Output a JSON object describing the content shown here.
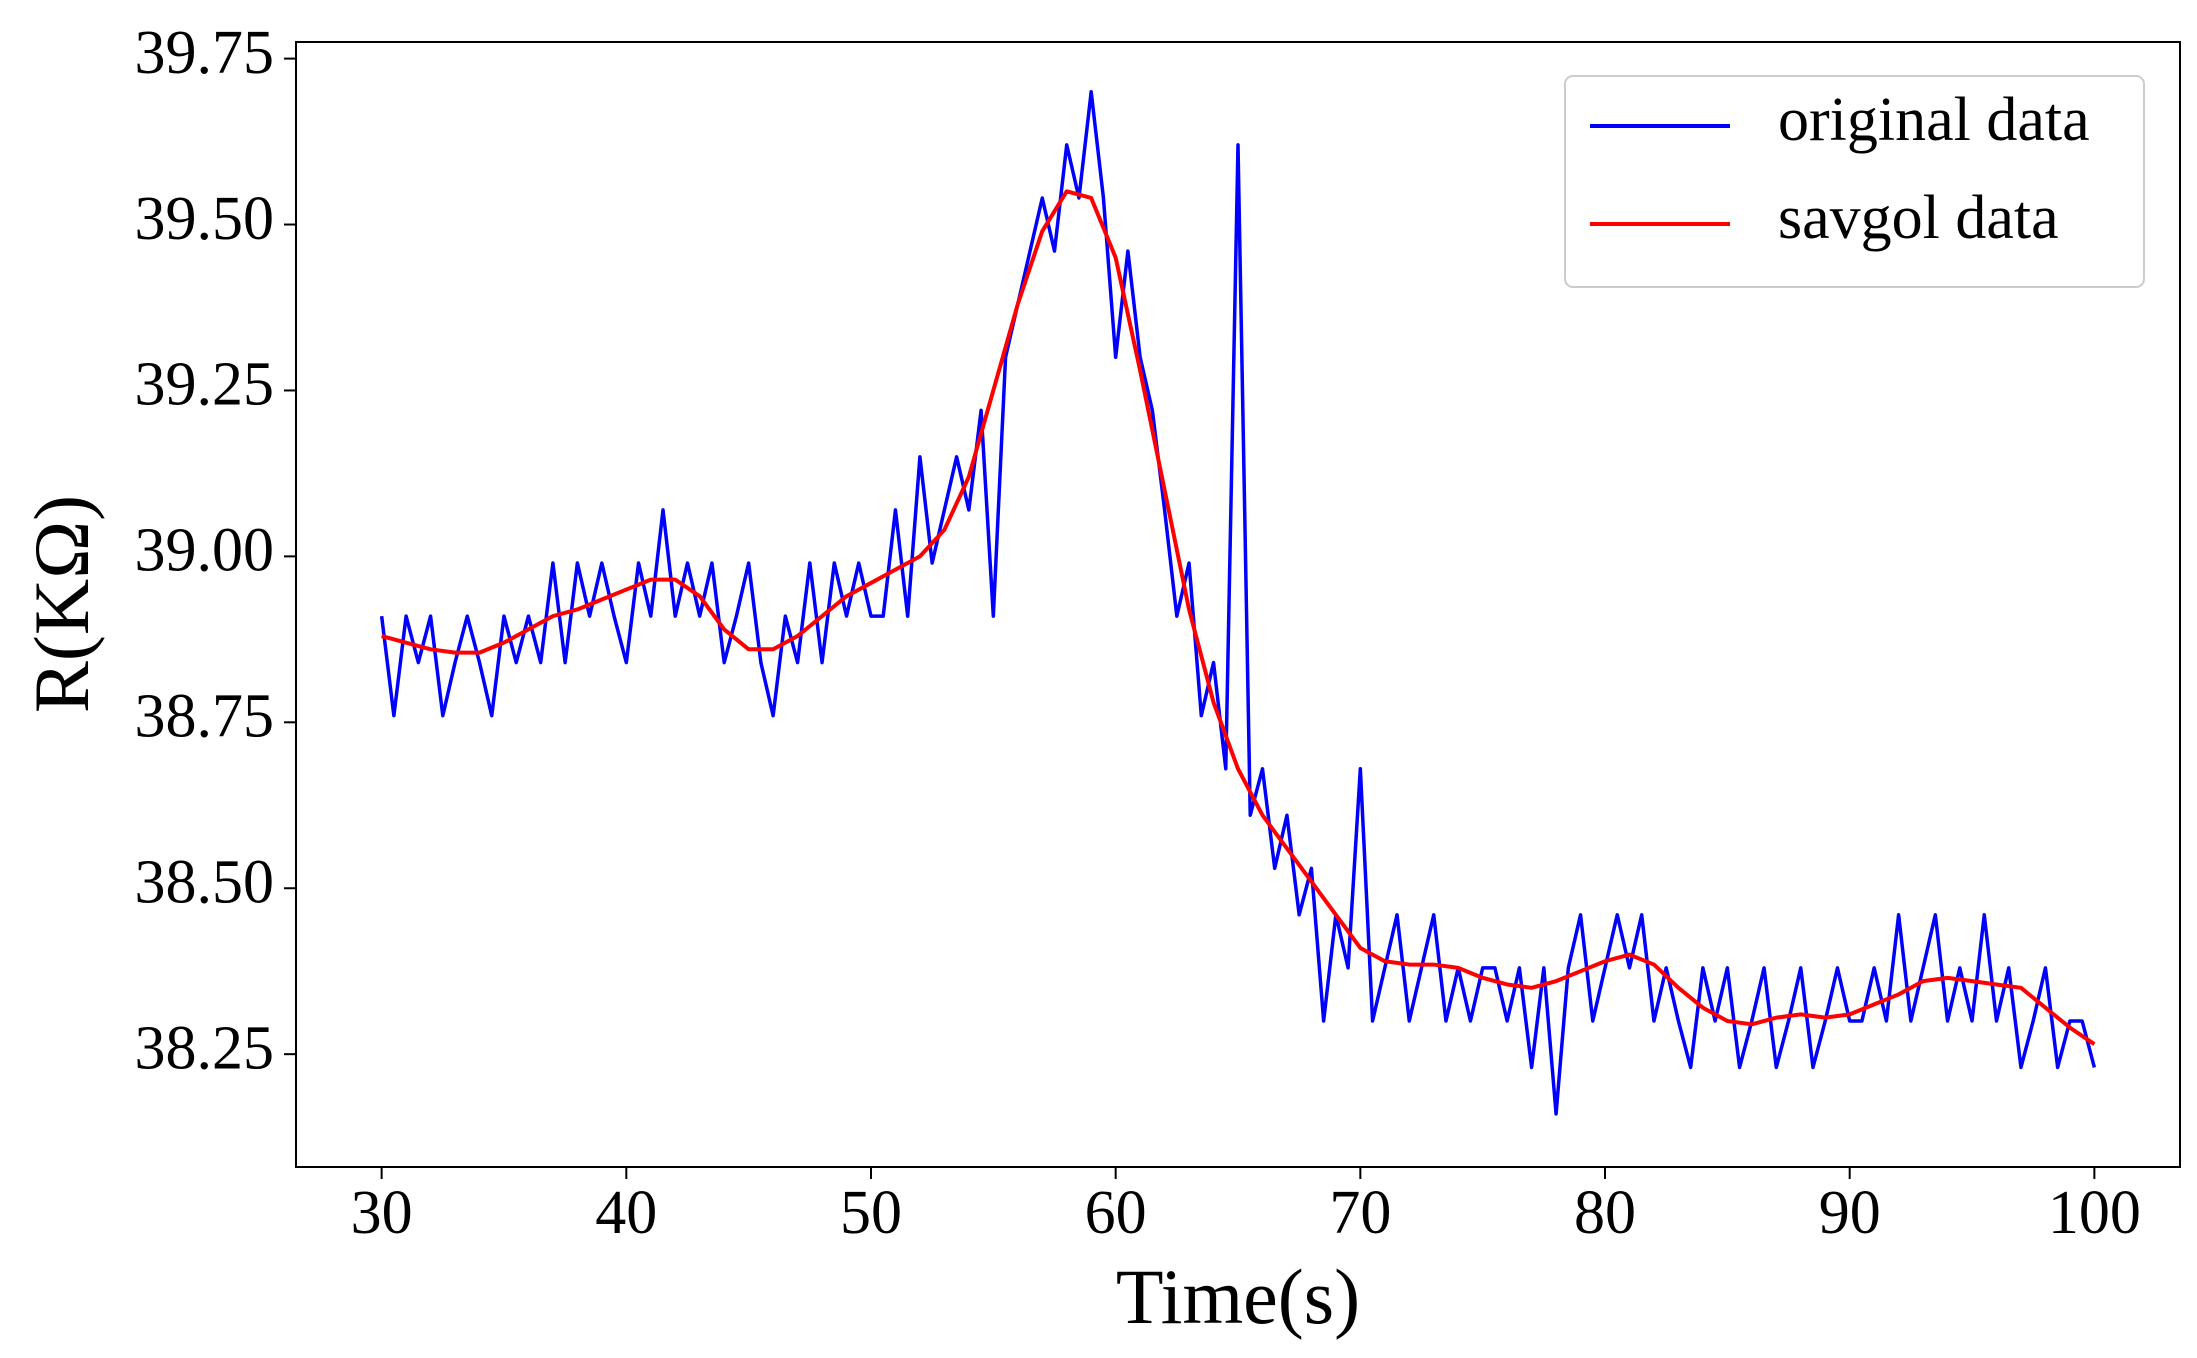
{
  "chart_data": {
    "type": "line",
    "xlabel": "Time(s)",
    "ylabel": "R(KΩ)",
    "xlim": [
      26.5,
      103.5
    ],
    "xticks": [
      30,
      40,
      50,
      60,
      70,
      80,
      90,
      100
    ],
    "ylim": [
      38.08,
      39.775
    ],
    "yticks": [
      38.25,
      {
        "value": 38.5,
        "label": "38.50"
      },
      38.75,
      {
        "value": 39,
        "label": "39.00"
      },
      39.25,
      {
        "value": 39.5,
        "label": "39.50"
      },
      39.75
    ],
    "legend": "upper right",
    "series": [
      {
        "name": "original data",
        "color": "#0000ff",
        "x": [
          30,
          30.5,
          31,
          31.5,
          32,
          32.5,
          33,
          33.5,
          34,
          34.5,
          35,
          35.5,
          36,
          36.5,
          37,
          37.5,
          38,
          38.5,
          39,
          39.5,
          40,
          40.5,
          41,
          41.5,
          42,
          42.5,
          43,
          43.5,
          44,
          44.5,
          45,
          45.5,
          46,
          46.5,
          47,
          47.5,
          48,
          48.5,
          49,
          49.5,
          50,
          50.5,
          51,
          51.5,
          52,
          52.5,
          53,
          53.5,
          54,
          54.5,
          55,
          55.5,
          56,
          56.5,
          57,
          57.5,
          58,
          58.5,
          59,
          59.5,
          60,
          60.5,
          61,
          61.5,
          62,
          62.5,
          63,
          63.5,
          64,
          64.5,
          65,
          65.5,
          66,
          66.5,
          67,
          67.5,
          68,
          68.5,
          69,
          69.5,
          70,
          70.5,
          71,
          71.5,
          72,
          72.5,
          73,
          73.5,
          74,
          74.5,
          75,
          75.5,
          76,
          76.5,
          77,
          77.5,
          78,
          78.5,
          79,
          79.5,
          80,
          80.5,
          81,
          81.5,
          82,
          82.5,
          83,
          83.5,
          84,
          84.5,
          85,
          85.5,
          86,
          86.5,
          87,
          87.5,
          88,
          88.5,
          89,
          89.5,
          90,
          90.5,
          91,
          91.5,
          92,
          92.5,
          93,
          93.5,
          94,
          94.5,
          95,
          95.5,
          96,
          96.5,
          97,
          97.5,
          98,
          98.5,
          99,
          99.5,
          100
        ],
        "values": [
          38.91,
          38.76,
          38.91,
          38.84,
          38.91,
          38.76,
          38.84,
          38.91,
          38.84,
          38.76,
          38.91,
          38.84,
          38.91,
          38.84,
          38.99,
          38.84,
          38.99,
          38.91,
          38.99,
          38.91,
          38.84,
          38.99,
          38.91,
          39.07,
          38.91,
          38.99,
          38.91,
          38.99,
          38.84,
          38.91,
          38.99,
          38.84,
          38.76,
          38.91,
          38.84,
          38.99,
          38.84,
          38.99,
          38.91,
          38.99,
          38.91,
          38.91,
          39.07,
          38.91,
          39.15,
          38.99,
          39.07,
          39.15,
          39.07,
          39.22,
          38.91,
          39.3,
          39.38,
          39.46,
          39.54,
          39.46,
          39.62,
          39.54,
          39.7,
          39.54,
          39.3,
          39.46,
          39.3,
          39.22,
          39.07,
          38.91,
          38.99,
          38.76,
          38.84,
          38.68,
          39.62,
          38.61,
          38.68,
          38.53,
          38.61,
          38.46,
          38.53,
          38.3,
          38.46,
          38.38,
          38.68,
          38.3,
          38.38,
          38.46,
          38.3,
          38.38,
          38.46,
          38.3,
          38.38,
          38.3,
          38.38,
          38.38,
          38.3,
          38.38,
          38.23,
          38.38,
          38.16,
          38.38,
          38.46,
          38.3,
          38.38,
          38.46,
          38.38,
          38.46,
          38.3,
          38.38,
          38.3,
          38.23,
          38.38,
          38.3,
          38.38,
          38.23,
          38.3,
          38.38,
          38.23,
          38.3,
          38.38,
          38.23,
          38.3,
          38.38,
          38.3,
          38.3,
          38.38,
          38.3,
          38.46,
          38.3,
          38.38,
          38.46,
          38.3,
          38.38,
          38.3,
          38.46,
          38.3,
          38.38,
          38.23,
          38.3,
          38.38,
          38.23,
          38.3,
          38.3,
          38.23
        ]
      },
      {
        "name": "savgol data",
        "color": "#ff0000",
        "x": [
          30,
          31,
          32,
          33,
          34,
          35,
          36,
          37,
          38,
          39,
          40,
          41,
          42,
          43,
          44,
          45,
          46,
          47,
          48,
          49,
          50,
          51,
          52,
          53,
          54,
          55,
          56,
          57,
          58,
          59,
          60,
          61,
          62,
          63,
          64,
          65,
          66,
          67,
          68,
          69,
          70,
          71,
          72,
          73,
          74,
          75,
          76,
          77,
          78,
          79,
          80,
          81,
          82,
          83,
          84,
          85,
          86,
          87,
          88,
          89,
          90,
          91,
          92,
          93,
          94,
          95,
          96,
          97,
          98,
          99,
          100
        ],
        "values": [
          38.88,
          38.87,
          38.86,
          38.855,
          38.855,
          38.87,
          38.89,
          38.91,
          38.92,
          38.935,
          38.95,
          38.965,
          38.965,
          38.94,
          38.89,
          38.86,
          38.86,
          38.88,
          38.91,
          38.94,
          38.96,
          38.98,
          39.0,
          39.04,
          39.12,
          39.25,
          39.38,
          39.49,
          39.55,
          39.54,
          39.45,
          39.28,
          39.1,
          38.92,
          38.78,
          38.68,
          38.61,
          38.56,
          38.51,
          38.46,
          38.41,
          38.39,
          38.385,
          38.385,
          38.38,
          38.365,
          38.355,
          38.35,
          38.36,
          38.375,
          38.39,
          38.4,
          38.385,
          38.35,
          38.32,
          38.3,
          38.295,
          38.305,
          38.31,
          38.305,
          38.31,
          38.325,
          38.34,
          38.36,
          38.365,
          38.36,
          38.355,
          38.35,
          38.32,
          38.29,
          38.265
        ]
      }
    ]
  }
}
